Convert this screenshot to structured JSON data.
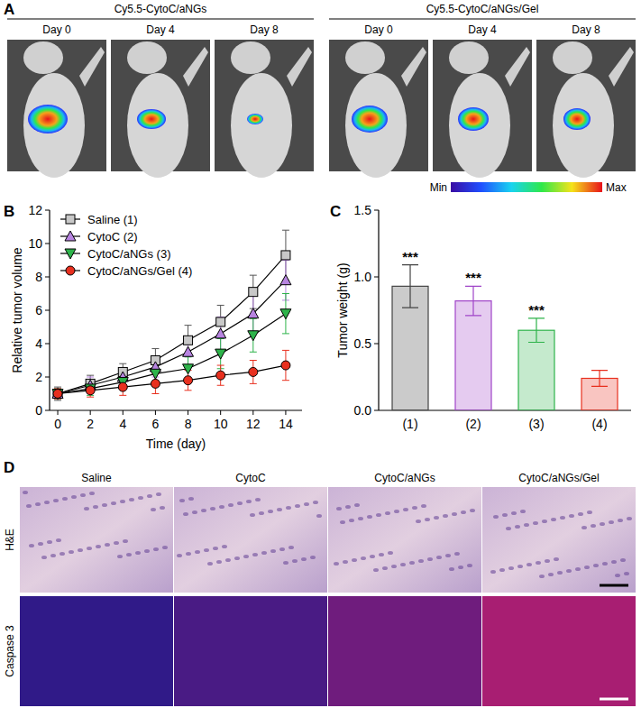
{
  "chart_data": [
    {
      "type": "line",
      "x_label": "Time (day)",
      "y_label": "Relative tumor volume",
      "x": [
        0,
        2,
        4,
        6,
        8,
        10,
        12,
        14
      ],
      "xlim": [
        -0.5,
        15
      ],
      "xticks": [
        0,
        2,
        4,
        6,
        8,
        10,
        12,
        14
      ],
      "ylim": [
        0,
        12
      ],
      "yticks": [
        0,
        2,
        4,
        6,
        8,
        10,
        12
      ],
      "grid": false,
      "legend": "top-left",
      "series": [
        {
          "name": "Saline (1)",
          "color": "#c8c8c8",
          "marker": "square",
          "values": [
            1,
            1.6,
            2.3,
            3.0,
            4.2,
            5.3,
            7.1,
            9.3
          ],
          "errors": [
            0.4,
            0.5,
            0.5,
            0.7,
            0.9,
            1.0,
            1.0,
            1.5
          ]
        },
        {
          "name": "CytoC (2)",
          "color": "#b784e0",
          "marker": "triangle",
          "values": [
            1,
            1.5,
            2.0,
            2.6,
            3.5,
            4.6,
            5.8,
            7.8
          ],
          "errors": [
            0.3,
            0.5,
            0.5,
            0.6,
            0.8,
            1.0,
            1.1,
            1.2
          ]
        },
        {
          "name": "CytoC/aNGs (3)",
          "color": "#2db34a",
          "marker": "triangle-down",
          "values": [
            1,
            1.3,
            1.7,
            2.2,
            2.5,
            3.4,
            4.5,
            5.8
          ],
          "errors": [
            0.3,
            0.4,
            0.4,
            0.6,
            0.7,
            0.9,
            1.0,
            1.2
          ]
        },
        {
          "name": "CytoC/aNGs/Gel (4)",
          "color": "#e8301f",
          "marker": "circle",
          "values": [
            1,
            1.2,
            1.4,
            1.6,
            1.8,
            2.1,
            2.3,
            2.7
          ],
          "errors": [
            0.3,
            0.4,
            0.5,
            0.6,
            0.6,
            0.6,
            0.7,
            0.9
          ]
        }
      ]
    },
    {
      "type": "bar",
      "y_label": "Tumor weight (g)",
      "categories": [
        "(1)",
        "(2)",
        "(3)",
        "(4)"
      ],
      "values": [
        0.93,
        0.82,
        0.6,
        0.24
      ],
      "errors": [
        0.16,
        0.11,
        0.09,
        0.06
      ],
      "colors": [
        "#444444",
        "#a045c8",
        "#2db34a",
        "#e8301f"
      ],
      "ylim": [
        0,
        1.5
      ],
      "yticks": [
        {
          "value": 0,
          "label": "0.0"
        },
        {
          "value": 0.5,
          "label": "0.5"
        },
        {
          "value": 1,
          "label": "1.0"
        },
        {
          "value": 1.5,
          "label": "1.5"
        }
      ],
      "grid": false,
      "annotations": [
        {
          "category": "(1)",
          "text": "***"
        },
        {
          "category": "(2)",
          "text": "***"
        },
        {
          "category": "(3)",
          "text": "***"
        }
      ]
    }
  ],
  "panels": {
    "A": {
      "label": "A",
      "groups": [
        {
          "title": "Cy5.5-CytoC/aNGs",
          "days": [
            "Day 0",
            "Day 4",
            "Day 8"
          ]
        },
        {
          "title": "Cy5.5-CytoC/aNGs/Gel",
          "days": [
            "Day 0",
            "Day 4",
            "Day 8"
          ]
        }
      ],
      "colorbar": {
        "min_label": "Min",
        "max_label": "Max"
      }
    },
    "B": {
      "label": "B"
    },
    "C": {
      "label": "C"
    },
    "D": {
      "label": "D",
      "columns": [
        "Saline",
        "CytoC",
        "CytoC/aNGs",
        "CytoC/aNGs/Gel"
      ],
      "rows": [
        "H&E",
        "Caspase 3"
      ]
    }
  }
}
